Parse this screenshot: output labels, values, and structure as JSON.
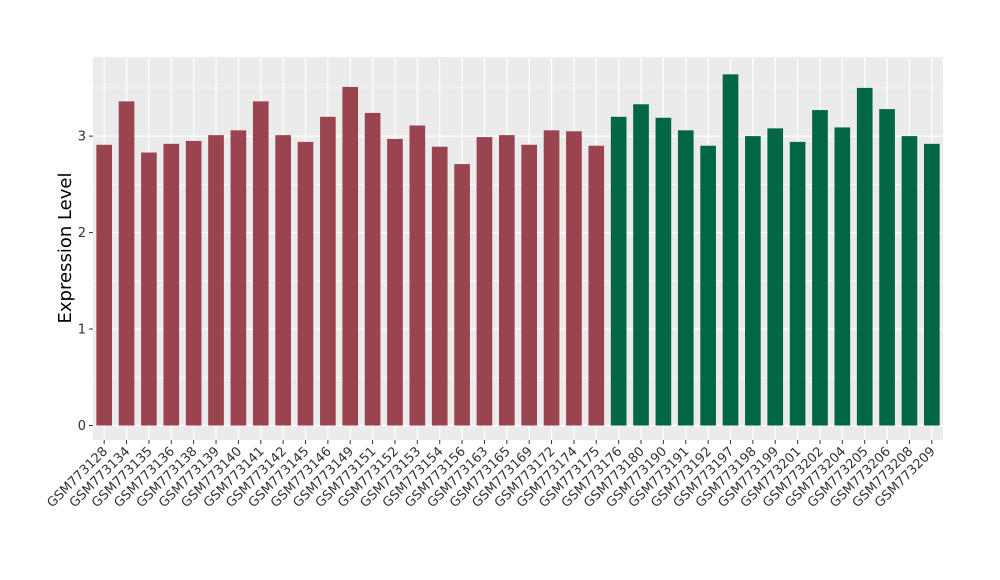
{
  "chart_data": {
    "type": "bar",
    "title": "",
    "xlabel": "",
    "ylabel": "Expression Level",
    "ylim": [
      -0.15,
      3.82
    ],
    "yticks": [
      0,
      1,
      2,
      3
    ],
    "grid": true,
    "colors": {
      "group1": "#9a4450",
      "group2": "#006644",
      "panel": "#ebebeb",
      "grid": "#ffffff"
    },
    "categories": [
      "GSM773128",
      "GSM773134",
      "GSM773135",
      "GSM773136",
      "GSM773138",
      "GSM773139",
      "GSM773140",
      "GSM773141",
      "GSM773142",
      "GSM773145",
      "GSM773146",
      "GSM773149",
      "GSM773151",
      "GSM773152",
      "GSM773153",
      "GSM773154",
      "GSM773156",
      "GSM773163",
      "GSM773165",
      "GSM773169",
      "GSM773172",
      "GSM773174",
      "GSM773175",
      "GSM773176",
      "GSM773180",
      "GSM773190",
      "GSM773191",
      "GSM773192",
      "GSM773197",
      "GSM773198",
      "GSM773199",
      "GSM773201",
      "GSM773202",
      "GSM773204",
      "GSM773205",
      "GSM773206",
      "GSM773208",
      "GSM773209"
    ],
    "values": [
      2.91,
      3.36,
      2.83,
      2.92,
      2.95,
      3.01,
      3.06,
      3.36,
      3.01,
      2.94,
      3.2,
      3.51,
      3.24,
      2.97,
      3.11,
      2.89,
      2.71,
      2.99,
      3.01,
      2.91,
      3.06,
      3.05,
      2.9,
      3.2,
      3.33,
      3.19,
      3.06,
      2.9,
      3.64,
      3.0,
      3.08,
      2.94,
      3.27,
      3.09,
      3.5,
      3.28,
      3.0,
      2.92
    ],
    "groups": [
      1,
      1,
      1,
      1,
      1,
      1,
      1,
      1,
      1,
      1,
      1,
      1,
      1,
      1,
      1,
      1,
      1,
      1,
      1,
      1,
      1,
      1,
      1,
      2,
      2,
      2,
      2,
      2,
      2,
      2,
      2,
      2,
      2,
      2,
      2,
      2,
      2,
      2
    ]
  }
}
